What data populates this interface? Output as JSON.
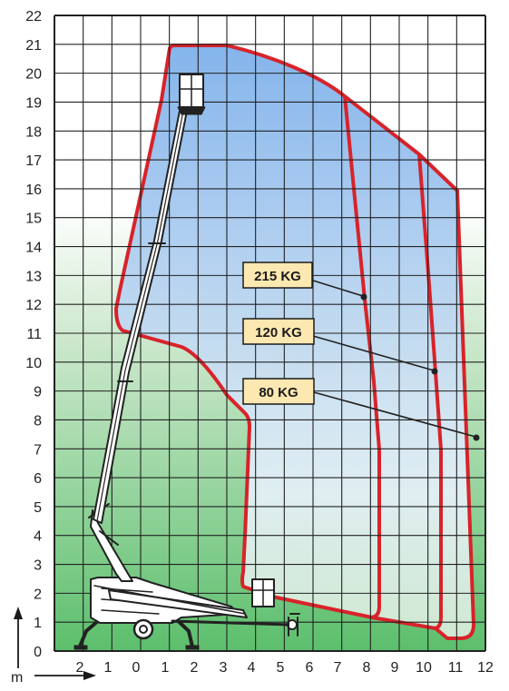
{
  "diagram": {
    "axis_unit": "m",
    "x_ticks": [
      "2",
      "1",
      "0",
      "1",
      "2",
      "3",
      "4",
      "5",
      "6",
      "7",
      "8",
      "9",
      "10",
      "11",
      "12"
    ],
    "y_ticks": [
      "0",
      "1",
      "2",
      "3",
      "4",
      "5",
      "6",
      "7",
      "8",
      "9",
      "10",
      "11",
      "12",
      "13",
      "14",
      "15",
      "16",
      "17",
      "18",
      "19",
      "20",
      "21",
      "22"
    ],
    "load_zones": [
      {
        "label": "215 KG"
      },
      {
        "label": "120 KG"
      },
      {
        "label": "80 KG"
      }
    ],
    "colors": {
      "envelope_line": "#d8232a",
      "label_fill": "#fce8b0",
      "grid": "#222222",
      "sky": "#7aaeea",
      "ground": "#5cbf6c"
    }
  }
}
